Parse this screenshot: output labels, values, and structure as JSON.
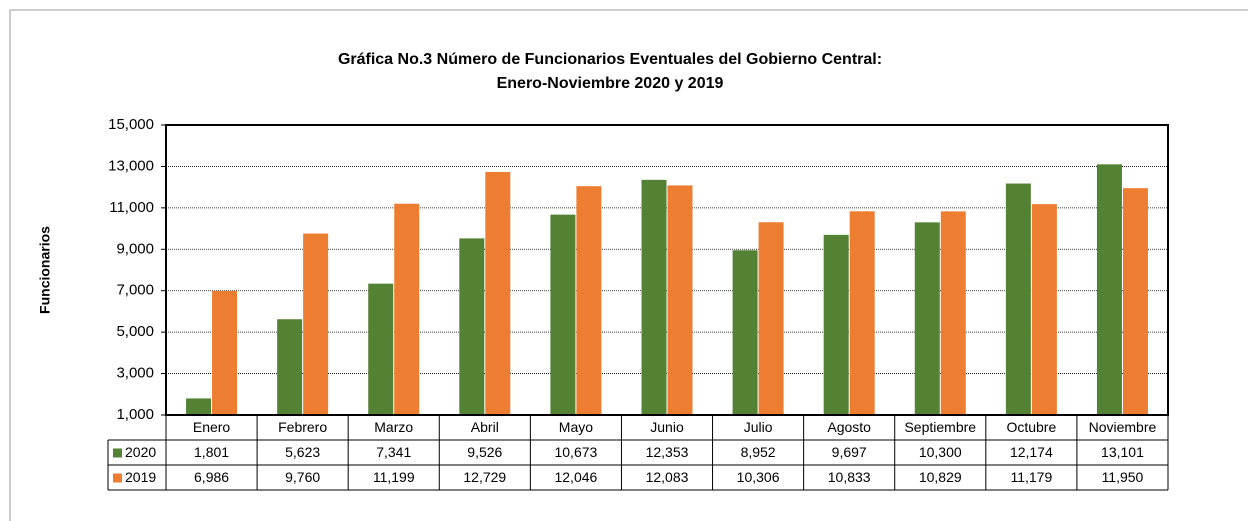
{
  "chart_data": {
    "type": "bar",
    "title": [
      "Gráfica No.3 Número de Funcionarios Eventuales del Gobierno Central:",
      "Enero-Noviembre 2020 y 2019"
    ],
    "y_label": "Funcionarios",
    "categories": [
      "Enero",
      "Febrero",
      "Marzo",
      "Abril",
      "Mayo",
      "Junio",
      "Julio",
      "Agosto",
      "Septiembre",
      "Octubre",
      "Noviembre"
    ],
    "series": [
      {
        "name": "2020",
        "color": "#548235",
        "values": [
          1801,
          5623,
          7341,
          9526,
          10673,
          12353,
          8952,
          9697,
          10300,
          12174,
          13101
        ],
        "value_labels": [
          "1,801",
          "5,623",
          "7,341",
          "9,526",
          "10,673",
          "12,353",
          "8,952",
          "9,697",
          "10,300",
          "12,174",
          "13,101"
        ]
      },
      {
        "name": "2019",
        "color": "#ed7d31",
        "values": [
          6986,
          9760,
          11199,
          12729,
          12046,
          12083,
          10306,
          10833,
          10829,
          11179,
          11950
        ],
        "value_labels": [
          "6,986",
          "9,760",
          "11,199",
          "12,729",
          "12,046",
          "12,083",
          "10,306",
          "10,833",
          "10,829",
          "11,179",
          "11,950"
        ]
      }
    ],
    "ylim": [
      1000,
      15000
    ],
    "yticks": [
      {
        "value": 1000,
        "label": "1,000"
      },
      {
        "value": 3000,
        "label": "3,000"
      },
      {
        "value": 5000,
        "label": "5,000"
      },
      {
        "value": 7000,
        "label": "7,000"
      },
      {
        "value": 9000,
        "label": "9,000"
      },
      {
        "value": 11000,
        "label": "11,000"
      },
      {
        "value": 13000,
        "label": "13,000"
      },
      {
        "value": 15000,
        "label": "15,000"
      }
    ],
    "grid": true
  }
}
